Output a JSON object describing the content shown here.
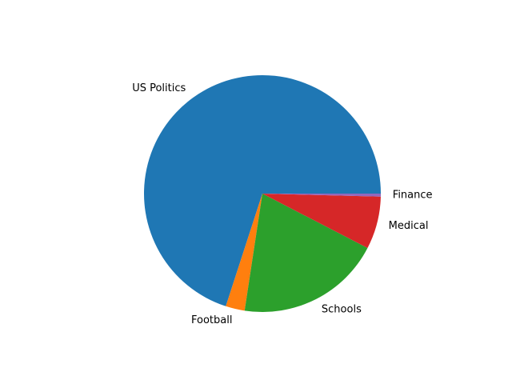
{
  "chart_data": {
    "type": "pie",
    "title": "",
    "start_angle_deg": 0,
    "direction": "counterclockwise",
    "slices": [
      {
        "label": "US Politics",
        "value": 70.0,
        "color": "#1f77b4"
      },
      {
        "label": "Football",
        "value": 2.6,
        "color": "#ff7f0e"
      },
      {
        "label": "Schools",
        "value": 19.8,
        "color": "#2ca02c"
      },
      {
        "label": "Medical",
        "value": 7.2,
        "color": "#d62728"
      },
      {
        "label": "Finance",
        "value": 0.4,
        "color": "#9467bd"
      }
    ],
    "legend": "none"
  }
}
